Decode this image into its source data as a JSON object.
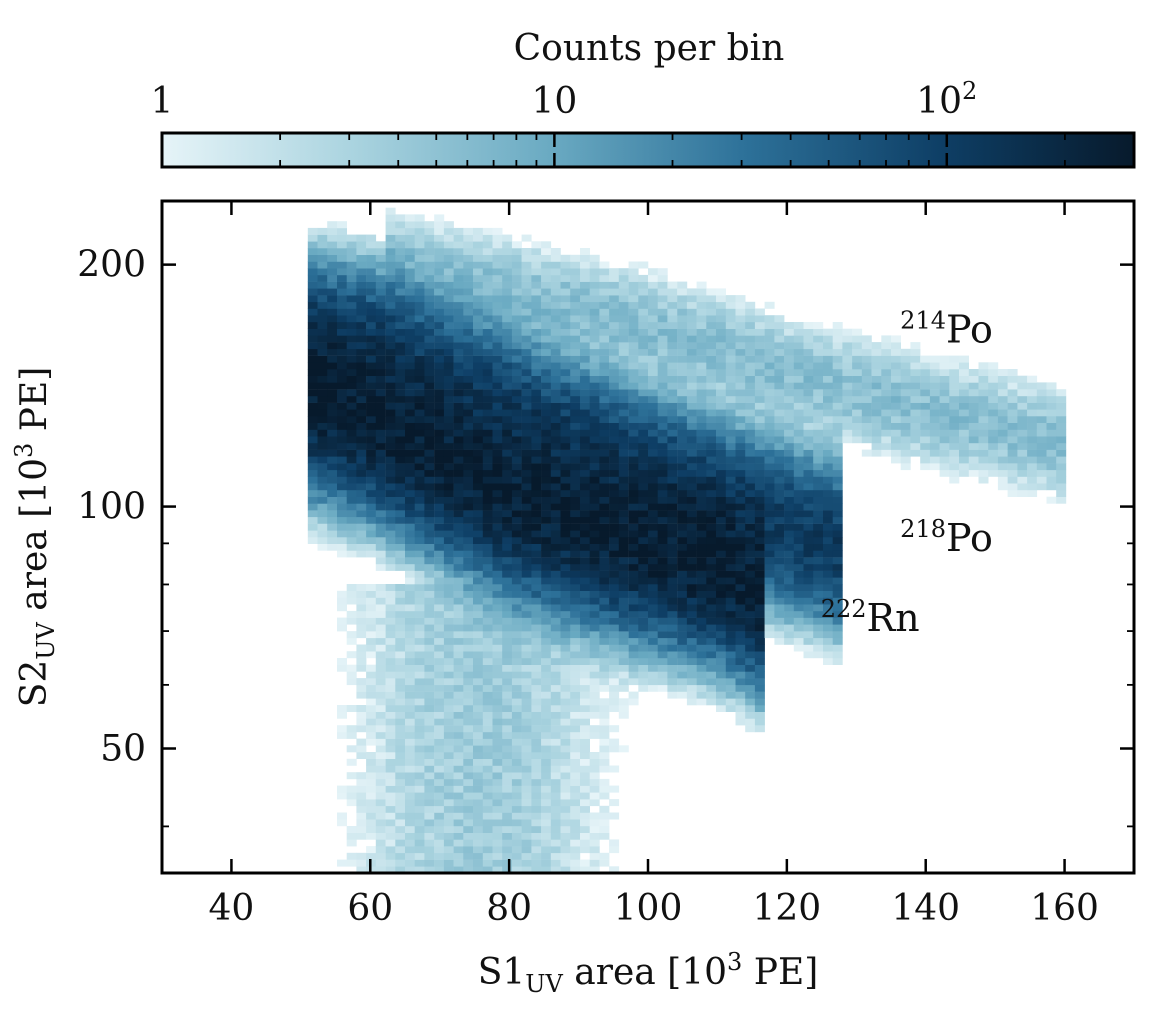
{
  "chart_data": {
    "type": "heatmap",
    "xlabel": {
      "base": "S1",
      "sub": "UV",
      "rest": " area [10",
      "sup": "3",
      "unit": " PE]"
    },
    "ylabel": {
      "base": "S2",
      "sub": "UV",
      "rest": " area [10",
      "sup": "3",
      "unit": " PE]"
    },
    "xlim": [
      30,
      170
    ],
    "ylim": [
      35,
      240
    ],
    "y_scale": "log",
    "x_ticks": [
      40,
      60,
      80,
      100,
      120,
      140,
      160
    ],
    "x_tick_labels": [
      "40",
      "60",
      "80",
      "100",
      "120",
      "140",
      "160"
    ],
    "y_ticks": [
      50,
      100,
      200
    ],
    "y_tick_labels": [
      "50",
      "100",
      "200"
    ],
    "colorbar": {
      "label": "Counts per bin",
      "scale": "log",
      "range": [
        1,
        300
      ],
      "ticks": [
        1,
        10,
        100
      ],
      "tick_labels": [
        {
          "base": "1",
          "sup": ""
        },
        {
          "base": "10",
          "sup": ""
        },
        {
          "base": "10",
          "sup": "2"
        }
      ],
      "colors": [
        "#e6f4f8",
        "#a9d3df",
        "#6aaac2",
        "#2d7199",
        "#0e3f66",
        "#071a2c"
      ]
    },
    "populations": [
      {
        "mass": "214",
        "element": "Po",
        "label_at": [
          143,
          160
        ],
        "band_center": [
          [
            62,
            195
          ],
          [
            80,
            182
          ],
          [
            100,
            165
          ],
          [
            120,
            145
          ],
          [
            140,
            130
          ],
          [
            160,
            118
          ]
        ],
        "peak_counts": 6
      },
      {
        "mass": "218",
        "element": "Po",
        "label_at": [
          143,
          88
        ],
        "band_center": [
          [
            50,
            160
          ],
          [
            60,
            155
          ],
          [
            80,
            128
          ],
          [
            100,
            108
          ],
          [
            115,
            96
          ],
          [
            127,
            88
          ]
        ],
        "peak_counts": 120
      },
      {
        "mass": "222",
        "element": "Rn",
        "label_at": [
          132,
          70
        ],
        "band_center": [
          [
            50,
            135
          ],
          [
            60,
            125
          ],
          [
            80,
            100
          ],
          [
            95,
            90
          ],
          [
            110,
            82
          ],
          [
            116,
            76
          ]
        ],
        "peak_counts": 250
      }
    ],
    "grid": false,
    "legend": "none"
  }
}
